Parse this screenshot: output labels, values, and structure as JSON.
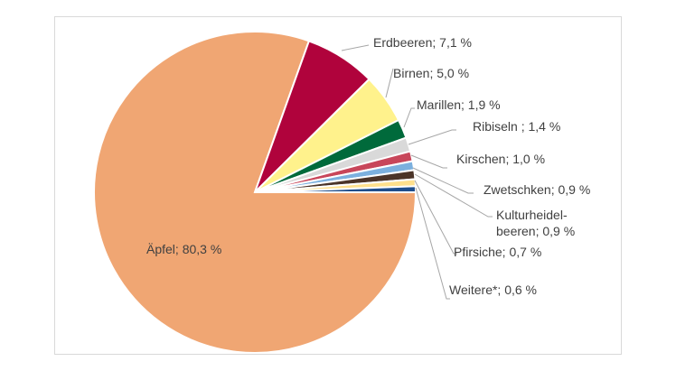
{
  "chart_data": {
    "type": "pie",
    "title": "",
    "start": "3 o'clock, clockwise",
    "slices": [
      {
        "label": "Äpfel; 80,3 %",
        "name": "Äpfel",
        "value": 80.3,
        "color": "#F0A673"
      },
      {
        "label": "Erdbeeren; 7,1 %",
        "name": "Erdbeeren",
        "value": 7.1,
        "color": "#B0033C"
      },
      {
        "label": "Birnen; 5,0 %",
        "name": "Birnen",
        "value": 5.0,
        "color": "#FFF28C"
      },
      {
        "label": "Marillen; 1,9 %",
        "name": "Marillen",
        "value": 1.9,
        "color": "#006A3B"
      },
      {
        "label": "Ribiseln ; 1,4 %",
        "name": "Ribiseln",
        "value": 1.4,
        "color": "#D9D9D9"
      },
      {
        "label": "Kirschen; 1,0 %",
        "name": "Kirschen",
        "value": 1.0,
        "color": "#C8465A"
      },
      {
        "label": "Zwetschken; 0,9 %",
        "name": "Zwetschken",
        "value": 0.9,
        "color": "#7CB0DE"
      },
      {
        "label": "Kulturheidel-\nbeeren; 0,9 %",
        "name": "Kulturheidelbeeren",
        "value": 0.9,
        "color": "#4B3428"
      },
      {
        "label": "Pfirsiche; 0,7 %",
        "name": "Pfirsiche",
        "value": 0.7,
        "color": "#FFE08C"
      },
      {
        "label": "Weitere*; 0,6 %",
        "name": "Weitere*",
        "value": 0.6,
        "color": "#1F4E8C"
      }
    ]
  }
}
